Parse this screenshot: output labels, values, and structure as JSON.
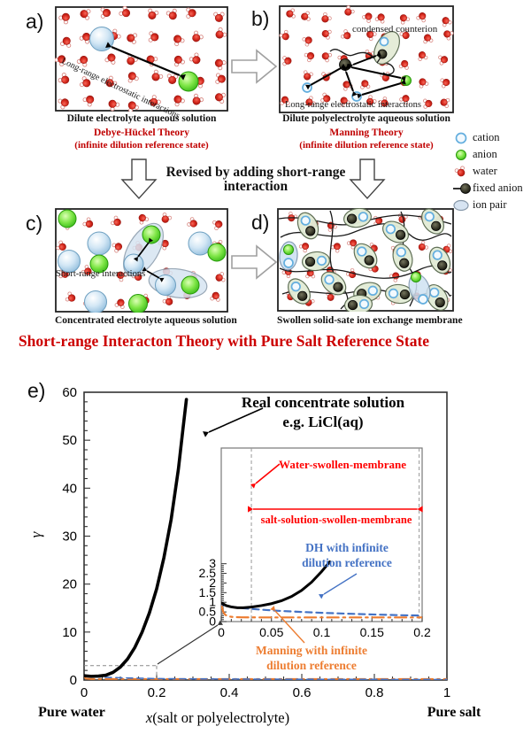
{
  "colors": {
    "red_text": "#c00000",
    "heading_red": "#cc0000",
    "annotation_red": "#ff0000",
    "dh_blue": "#4472c4",
    "manning_orange": "#ed7d31",
    "chart_black": "#000000"
  },
  "panels": {
    "a": {
      "label": "a)",
      "caption": "Dilute electrolyte aqueous solution",
      "theory": "Debye-Hückel Theory",
      "theory_sub": "(infinite dilution reference state)",
      "annotation": "Long-range electrostatic interactions"
    },
    "b": {
      "label": "b)",
      "caption": "Dilute polyelectrolyte aqueous solution",
      "theory": "Manning Theory",
      "theory_sub": "(infinite dilution reference state)",
      "annotation_top": "condensed counterion",
      "annotation_bottom": "Long-range electrostatic interactions"
    },
    "c": {
      "label": "c)",
      "caption": "Concentrated electrolyte aqueous solution",
      "annotation": "Short-range interactions"
    },
    "d": {
      "label": "d)",
      "caption": "Swollen solid-sate ion exchange membrane"
    },
    "e": {
      "label": "e)"
    }
  },
  "revision_note": {
    "line1": "Revised by adding short-range",
    "line2": "interaction"
  },
  "heading": "Short-range Interacton Theory with Pure Salt Reference State",
  "legend": {
    "items": [
      {
        "icon": "cation-icon",
        "label": "cation"
      },
      {
        "icon": "anion-icon",
        "label": "anion"
      },
      {
        "icon": "water-icon",
        "label": "water"
      },
      {
        "icon": "fixed-anion-icon",
        "label": "fixed anion"
      },
      {
        "icon": "ion-pair-icon",
        "label": "ion pair"
      }
    ]
  },
  "chart_data": {
    "type": "line",
    "xlabel_italic": "x",
    "xlabel_rest": "(salt or polyelectrolyte)",
    "ylabel": "γ",
    "xlim": [
      0,
      1
    ],
    "ylim": [
      0,
      60
    ],
    "x_ticks": [
      "0",
      "0.2",
      "0.4",
      "0.6",
      "0.8",
      "1"
    ],
    "y_ticks": [
      "0",
      "10",
      "20",
      "30",
      "40",
      "50",
      "60"
    ],
    "corner_labels": {
      "left": "Pure water",
      "right": "Pure salt"
    },
    "annotation": {
      "line1": "Real concentrate solution",
      "line2": "e.g. LiCl(aq)"
    },
    "series": [
      {
        "name": "Real concentrate solution",
        "line_style": "solid",
        "color": "#000000",
        "points": [
          [
            0,
            0.9
          ],
          [
            0.02,
            0.76
          ],
          [
            0.04,
            0.82
          ],
          [
            0.06,
            1.0
          ],
          [
            0.08,
            1.6
          ],
          [
            0.1,
            2.7
          ],
          [
            0.12,
            4.4
          ],
          [
            0.14,
            6.8
          ],
          [
            0.16,
            10
          ],
          [
            0.18,
            14
          ],
          [
            0.2,
            19
          ],
          [
            0.22,
            25.5
          ],
          [
            0.24,
            33.5
          ],
          [
            0.26,
            44
          ],
          [
            0.272,
            52
          ],
          [
            0.282,
            58.5
          ]
        ]
      },
      {
        "name": "DH with infinite dilution reference",
        "line_style": "dashed",
        "color": "#4472c4",
        "points": [
          [
            0,
            0.95
          ],
          [
            0.05,
            0.6
          ],
          [
            0.1,
            0.45
          ],
          [
            0.2,
            0.29
          ],
          [
            0.3,
            0.23
          ],
          [
            0.5,
            0.17
          ],
          [
            0.7,
            0.13
          ],
          [
            1,
            0.1
          ]
        ]
      },
      {
        "name": "Manning with infinite dilution reference",
        "line_style": "dashdot",
        "color": "#ed7d31",
        "points": [
          [
            0,
            0.8
          ],
          [
            0.005,
            0.3
          ],
          [
            0.02,
            0.21
          ],
          [
            1,
            0.21
          ]
        ]
      }
    ],
    "zoom_region": {
      "xmax": 0.2,
      "ymax": 3
    },
    "inset": {
      "xlim": [
        0,
        0.2
      ],
      "ylim": [
        0,
        3
      ],
      "x_ticks": [
        "0",
        "0.05",
        "0.1",
        "0.15",
        "0.2"
      ],
      "y_ticks": [
        "0",
        "0.5",
        "1",
        "1.5",
        "2",
        "2.5",
        "3"
      ],
      "region_boundaries_x": [
        0.03,
        0.197
      ],
      "labels": {
        "water_membrane": "Water-swollen-membrane",
        "salt_membrane": "salt-solution-swollen-membrane",
        "dh_line1": "DH with infinite",
        "dh_line2": "dilution reference",
        "manning_line1": "Manning with infinite",
        "manning_line2": "dilution reference"
      },
      "series": [
        {
          "name": "Real concentrate solution",
          "line_style": "solid",
          "color": "#000000",
          "points": [
            [
              0,
              0.97
            ],
            [
              0.005,
              0.83
            ],
            [
              0.01,
              0.76
            ],
            [
              0.016,
              0.72
            ],
            [
              0.022,
              0.715
            ],
            [
              0.03,
              0.75
            ],
            [
              0.04,
              0.83
            ],
            [
              0.05,
              0.93
            ],
            [
              0.06,
              1.08
            ],
            [
              0.07,
              1.3
            ],
            [
              0.08,
              1.62
            ],
            [
              0.09,
              2.05
            ],
            [
              0.1,
              2.6
            ],
            [
              0.108,
              3.1
            ]
          ]
        },
        {
          "name": "DH with infinite dilution reference",
          "line_style": "dashed",
          "color": "#4472c4",
          "points": [
            [
              0,
              0.9
            ],
            [
              0.005,
              0.82
            ],
            [
              0.01,
              0.77
            ],
            [
              0.02,
              0.7
            ],
            [
              0.03,
              0.655
            ],
            [
              0.045,
              0.6
            ],
            [
              0.06,
              0.55
            ],
            [
              0.08,
              0.5
            ],
            [
              0.1,
              0.455
            ],
            [
              0.125,
              0.41
            ],
            [
              0.15,
              0.37
            ],
            [
              0.175,
              0.335
            ],
            [
              0.2,
              0.31
            ]
          ]
        },
        {
          "name": "Manning with infinite dilution reference",
          "line_style": "dashdot",
          "color": "#ed7d31",
          "points": [
            [
              0,
              0.85
            ],
            [
              0.002,
              0.5
            ],
            [
              0.004,
              0.35
            ],
            [
              0.007,
              0.27
            ],
            [
              0.012,
              0.235
            ],
            [
              0.02,
              0.22
            ],
            [
              0.04,
              0.215
            ],
            [
              0.2,
              0.215
            ]
          ]
        }
      ]
    }
  }
}
